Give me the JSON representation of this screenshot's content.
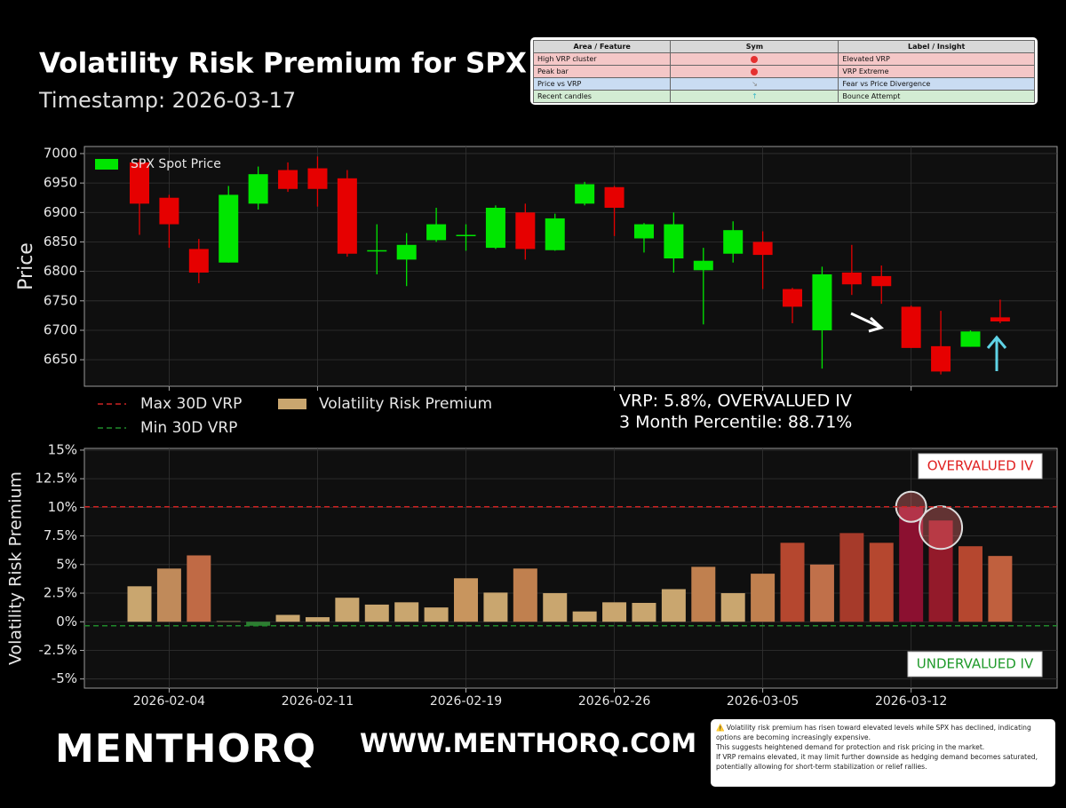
{
  "header": {
    "title": "Volatility Risk Premium for SPX",
    "subtitle": "Timestamp: 2026-03-17"
  },
  "table": {
    "columns": [
      "Area / Feature",
      "Sym",
      "Label / Insight"
    ],
    "rows": [
      {
        "feature": "High VRP cluster",
        "insight": "Elevated VRP"
      },
      {
        "feature": "Peak bar",
        "insight": "VRP Extreme"
      },
      {
        "feature": "Price vs VRP",
        "insight": "Fear vs Price Divergence"
      },
      {
        "feature": "Recent candles",
        "insight": "Bounce Attempt"
      }
    ]
  },
  "chart_data": [
    {
      "type": "candlestick",
      "ylabel": "Price",
      "ylim": [
        6605,
        7012
      ],
      "yticks": [
        6650,
        6700,
        6750,
        6800,
        6850,
        6900,
        6950,
        7000
      ],
      "grid": true,
      "legend": "upper left",
      "series": [
        {
          "name": "SPX Spot Price",
          "up_color": "#00e600",
          "down_color": "#e60000",
          "open": [
            6985,
            6925,
            6838,
            6815,
            6915,
            6972,
            6975,
            6958,
            6834,
            6820,
            6853,
            6861,
            6840,
            6900,
            6836,
            6915,
            6943,
            6856,
            6822,
            6802,
            6830,
            6850,
            6770,
            6700,
            6798,
            6792,
            6740,
            6673,
            6672,
            6722
          ],
          "high": [
            6990,
            6930,
            6855,
            6945,
            6978,
            6985,
            6995,
            6972,
            6880,
            6865,
            6908,
            6880,
            6912,
            6915,
            6898,
            6952,
            6945,
            6882,
            6900,
            6840,
            6885,
            6868,
            6772,
            6808,
            6845,
            6810,
            6742,
            6733,
            6700,
            6752
          ],
          "low": [
            6862,
            6840,
            6780,
            6815,
            6905,
            6935,
            6910,
            6825,
            6795,
            6775,
            6850,
            6835,
            6838,
            6820,
            6835,
            6912,
            6860,
            6832,
            6798,
            6710,
            6815,
            6770,
            6712,
            6635,
            6760,
            6745,
            6670,
            6625,
            6672,
            6712
          ],
          "close": [
            6915,
            6880,
            6798,
            6930,
            6965,
            6940,
            6940,
            6830,
            6836,
            6845,
            6880,
            6862,
            6908,
            6838,
            6890,
            6948,
            6908,
            6880,
            6880,
            6818,
            6870,
            6828,
            6740,
            6795,
            6778,
            6775,
            6670,
            6630,
            6698,
            6715
          ]
        }
      ]
    },
    {
      "type": "bar",
      "ylabel": "Volatility Risk Premium",
      "ylim": [
        -5.8,
        15.15
      ],
      "yticks": [
        {
          "value": -5,
          "label": "-5%"
        },
        {
          "value": -2.5,
          "label": "-2.5%"
        },
        {
          "value": 0,
          "label": "0%"
        },
        {
          "value": 2.5,
          "label": "2.5%"
        },
        {
          "value": 5,
          "label": "5%"
        },
        {
          "value": 7.5,
          "label": "7.5%"
        },
        {
          "value": 10,
          "label": "10%"
        },
        {
          "value": 12.5,
          "label": "12.5%"
        },
        {
          "value": 15,
          "label": "15%"
        }
      ],
      "grid": true,
      "categories": [
        null,
        "2026-02-04",
        null,
        null,
        null,
        null,
        "2026-02-11",
        null,
        null,
        null,
        null,
        "2026-02-19",
        null,
        null,
        null,
        null,
        "2026-02-26",
        null,
        null,
        null,
        null,
        "2026-03-05",
        null,
        null,
        null,
        null,
        "2026-03-12",
        null,
        null,
        null
      ],
      "series": [
        {
          "name": "Volatility Risk Premium",
          "color": "#c9a66f",
          "values": [
            3.1,
            4.65,
            5.8,
            0.05,
            -0.35,
            0.6,
            0.4,
            2.1,
            1.5,
            1.7,
            1.25,
            3.8,
            2.55,
            4.65,
            2.5,
            0.9,
            1.7,
            1.65,
            2.85,
            4.8,
            2.5,
            4.2,
            6.9,
            5.0,
            7.75,
            6.9,
            10.05,
            8.85,
            6.6,
            5.75
          ],
          "colors": [
            "#c9a66f",
            "#c08a5a",
            "#c06a45",
            "#c9a66f",
            "#2e7d32",
            "#c9a66f",
            "#c9a66f",
            "#c9a66f",
            "#c9a66f",
            "#c9a66f",
            "#c9a66f",
            "#c8955e",
            "#c9a66f",
            "#c0804f",
            "#c9a66f",
            "#c9a66f",
            "#c9a66f",
            "#c9a66f",
            "#c9a66f",
            "#c0804f",
            "#c9a66f",
            "#c0804f",
            "#b5472f",
            "#c0704a",
            "#a63a2a",
            "#b5472f",
            "#8b1030",
            "#931a2a",
            "#b5472f",
            "#c0603e"
          ]
        }
      ],
      "reference_lines": [
        {
          "name": "Max 30D VRP",
          "value": 10.05,
          "color": "#cc2222"
        },
        {
          "name": "Min 30D VRP",
          "value": -0.35,
          "color": "#1f8a2a"
        }
      ],
      "highlight": [
        26,
        27
      ],
      "annotations": [
        "VRP: 5.8%, OVERVALUED IV",
        "3 Month Percentile: 88.71%"
      ],
      "zones": [
        {
          "label": "OVERVALUED IV",
          "color": "#e02020"
        },
        {
          "label": "UNDERVALUED IV",
          "color": "#1f9a2a"
        }
      ]
    }
  ],
  "footer": {
    "brand": "MENTHORQ",
    "url": "WWW.MENTHORQ.COM",
    "note": [
      "⚠️ Volatility risk premium has risen toward elevated levels while SPX has declined, indicating options are becoming increasingly expensive.",
      "This suggests heightened demand for protection and risk pricing in the market.",
      "If VRP remains elevated, it may limit further downside as hedging demand becomes saturated, potentially allowing for short-term stabilization or relief rallies."
    ]
  }
}
